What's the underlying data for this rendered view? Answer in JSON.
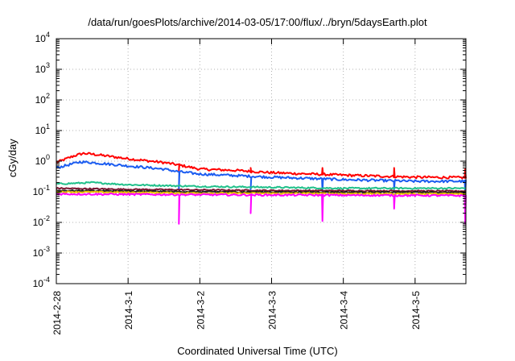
{
  "chart_data": {
    "type": "line",
    "title": "/data/run/goesPlots/archive/2014-03-05/17:00/flux/../bryn/5daysEarth.plot",
    "xlabel": "Coordinated Universal Time (UTC)",
    "ylabel": "cGy/day",
    "yscale": "log",
    "ylim": [
      0.0001,
      10000
    ],
    "xlim": [
      "2014-02-28 00:00",
      "2014-03-05 17:00"
    ],
    "grid": true,
    "x_ticks": [
      "2014-2-28",
      "2014-3-1",
      "2014-3-2",
      "2014-3-3",
      "2014-3-4",
      "2014-3-5"
    ],
    "y_ticks": [
      {
        "base": "10",
        "exp": "-4"
      },
      {
        "base": "10",
        "exp": "-3"
      },
      {
        "base": "10",
        "exp": "-2"
      },
      {
        "base": "10",
        "exp": "-1"
      },
      {
        "base": "10",
        "exp": "0"
      },
      {
        "base": "10",
        "exp": "1"
      },
      {
        "base": "10",
        "exp": "2"
      },
      {
        "base": "10",
        "exp": "3"
      },
      {
        "base": "10",
        "exp": "4"
      }
    ],
    "series": [
      {
        "color": "#ff0000",
        "noise": 0.08,
        "points": [
          [
            "2014-02-28 00:00",
            0.9
          ],
          [
            "2014-02-28 06:00",
            1.5
          ],
          [
            "2014-02-28 09:00",
            1.8
          ],
          [
            "2014-02-28 12:00",
            1.7
          ],
          [
            "2014-03-01 00:00",
            1.2
          ],
          [
            "2014-03-01 12:00",
            0.9
          ],
          [
            "2014-03-01 17:00",
            0.75
          ],
          [
            "2014-03-02 00:00",
            0.55
          ],
          [
            "2014-03-02 12:00",
            0.5
          ],
          [
            "2014-03-03 00:00",
            0.42
          ],
          [
            "2014-03-04 00:00",
            0.35
          ],
          [
            "2014-03-05 00:00",
            0.3
          ],
          [
            "2014-03-05 17:00",
            0.29
          ]
        ],
        "dips": [
          [
            "2014-03-01 17:00",
            0.5
          ],
          [
            "2014-03-02 17:00",
            0.6
          ],
          [
            "2014-03-03 17:00",
            0.6
          ],
          [
            "2014-03-04 17:00",
            0.6
          ],
          [
            "2014-03-05 16:45",
            0.55
          ]
        ]
      },
      {
        "color": "#1b5cf0",
        "noise": 0.08,
        "points": [
          [
            "2014-02-28 00:00",
            0.6
          ],
          [
            "2014-02-28 08:00",
            0.95
          ],
          [
            "2014-02-28 12:00",
            0.9
          ],
          [
            "2014-03-01 00:00",
            0.7
          ],
          [
            "2014-03-01 12:00",
            0.55
          ],
          [
            "2014-03-01 17:00",
            0.45
          ],
          [
            "2014-03-02 00:00",
            0.38
          ],
          [
            "2014-03-03 00:00",
            0.3
          ],
          [
            "2014-03-04 00:00",
            0.25
          ],
          [
            "2014-03-05 00:00",
            0.22
          ],
          [
            "2014-03-05 17:00",
            0.22
          ]
        ],
        "dips": [
          [
            "2014-03-01 17:00",
            0.12
          ],
          [
            "2014-03-02 17:00",
            0.12
          ],
          [
            "2014-03-03 17:00",
            0.1
          ],
          [
            "2014-03-04 17:00",
            0.12
          ],
          [
            "2014-03-05 16:45",
            0.09
          ]
        ]
      },
      {
        "color": "#20c08a",
        "noise": 0.05,
        "points": [
          [
            "2014-02-28 00:00",
            0.18
          ],
          [
            "2014-02-28 12:00",
            0.2
          ],
          [
            "2014-03-01 00:00",
            0.17
          ],
          [
            "2014-03-02 00:00",
            0.15
          ],
          [
            "2014-03-03 00:00",
            0.14
          ],
          [
            "2014-03-04 00:00",
            0.13
          ],
          [
            "2014-03-05 17:00",
            0.13
          ]
        ],
        "dips": []
      },
      {
        "color": "#7a1530",
        "noise": 0.04,
        "points": [
          [
            "2014-02-28 00:00",
            0.13
          ],
          [
            "2014-03-01 00:00",
            0.12
          ],
          [
            "2014-03-02 00:00",
            0.115
          ],
          [
            "2014-03-03 00:00",
            0.11
          ],
          [
            "2014-03-05 17:00",
            0.105
          ]
        ],
        "dips": []
      },
      {
        "color": "#222222",
        "noise": 0.04,
        "points": [
          [
            "2014-02-28 00:00",
            0.11
          ],
          [
            "2014-03-02 00:00",
            0.1
          ],
          [
            "2014-03-05 17:00",
            0.095
          ]
        ],
        "dips": []
      },
      {
        "color": "#e8c000",
        "noise": 0.05,
        "points": [
          [
            "2014-02-28 00:00",
            0.1
          ],
          [
            "2014-03-02 00:00",
            0.09
          ],
          [
            "2014-03-05 17:00",
            0.085
          ]
        ],
        "dips": []
      },
      {
        "color": "#ff00ff",
        "noise": 0.06,
        "points": [
          [
            "2014-02-28 00:00",
            0.085
          ],
          [
            "2014-03-02 00:00",
            0.08
          ],
          [
            "2014-03-05 17:00",
            0.075
          ]
        ],
        "dips": [
          [
            "2014-03-01 17:00",
            0.009
          ],
          [
            "2014-03-02 17:00",
            0.02
          ],
          [
            "2014-03-03 17:00",
            0.011
          ],
          [
            "2014-03-04 17:00",
            0.028
          ],
          [
            "2014-03-05 16:45",
            0.009
          ]
        ]
      }
    ]
  }
}
